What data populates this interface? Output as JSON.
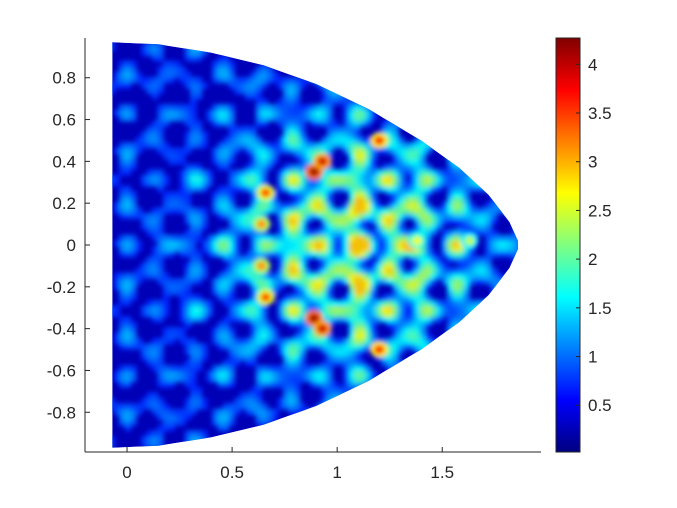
{
  "chart_data": {
    "type": "heatmap",
    "title": "",
    "xlabel": "",
    "ylabel": "",
    "xlim": [
      -0.2,
      1.97
    ],
    "ylim": [
      -0.99,
      0.99
    ],
    "x_ticks": [
      0,
      0.5,
      1,
      1.5
    ],
    "x_tick_labels": [
      "0",
      "0.5",
      "1",
      "1.5"
    ],
    "y_ticks": [
      0.8,
      0.6,
      0.4,
      0.2,
      0,
      -0.2,
      -0.4,
      -0.6,
      -0.8
    ],
    "y_tick_labels": [
      "0.8",
      "0.6",
      "0.4",
      "0.2",
      "0",
      "-0.2",
      "-0.4",
      "-0.6",
      "-0.8"
    ],
    "colormap": "jet",
    "colorbar": {
      "range": [
        0.02,
        4.27
      ],
      "ticks": [
        0.5,
        1,
        1.5,
        2,
        2.5,
        3,
        3.5,
        4
      ],
      "tick_labels": [
        "0.5",
        "1",
        "1.5",
        "2",
        "2.5",
        "3",
        "3.5",
        "4"
      ]
    },
    "domain_shape": "boomerang (chevron) region symmetric about y = 0, tips near (0, 0.97) and (0, -0.97), inner vertex near x = 0.52, outer vertex near x = 1.87",
    "hot_spots": [
      {
        "x": 0.89,
        "y": 0.35,
        "value": 4.1
      },
      {
        "x": 0.93,
        "y": 0.4,
        "value": 3.9
      },
      {
        "x": 0.89,
        "y": -0.35,
        "value": 4.1
      },
      {
        "x": 0.93,
        "y": -0.4,
        "value": 3.9
      },
      {
        "x": 1.2,
        "y": 0.5,
        "value": 3.6
      },
      {
        "x": 1.2,
        "y": -0.5,
        "value": 3.6
      },
      {
        "x": 0.66,
        "y": 0.25,
        "value": 3.4
      },
      {
        "x": 0.66,
        "y": -0.25,
        "value": 3.4
      },
      {
        "x": 0.64,
        "y": 0.1,
        "value": 3.1
      },
      {
        "x": 0.64,
        "y": -0.1,
        "value": 3.1
      },
      {
        "x": 1.38,
        "y": 0.02,
        "value": 2.6
      },
      {
        "x": 1.63,
        "y": 0.02,
        "value": 2.4
      }
    ]
  }
}
